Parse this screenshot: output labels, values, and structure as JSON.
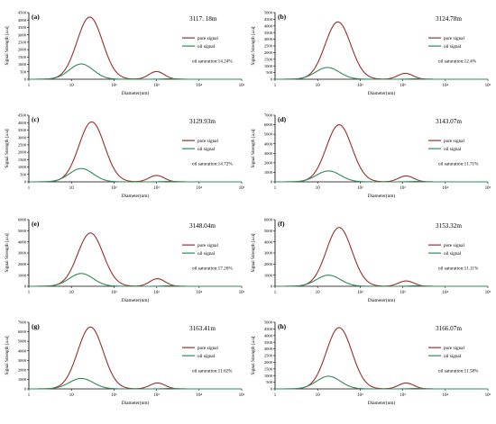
{
  "chart_data": [
    {
      "type": "line",
      "panel_label": "(a)",
      "depth": "3117. 18m",
      "oil_saturation": "oil saturation:14.24%",
      "xlabel": "Diameter(nm)",
      "ylabel": "Signal Strength [a.u]",
      "xscale": "log",
      "xlim": [
        1,
        100000
      ],
      "ylim": [
        0,
        4500
      ],
      "yticks": [
        "0",
        "500",
        "1000",
        "1500",
        "2000",
        "2500",
        "3000",
        "3500",
        "4000",
        "4500"
      ],
      "xtick_labels": [
        "1",
        "10",
        "10²",
        "10³",
        "10⁴",
        "10⁵"
      ],
      "legend": [
        "pore signal",
        "oil signal"
      ],
      "series": [
        {
          "name": "pore signal",
          "color": "#9b2d2d",
          "peaks": [
            {
              "center_nm": 27,
              "height": 4200,
              "width": 0.3
            },
            {
              "center_nm": 1000,
              "height": 520,
              "width": 0.18
            }
          ]
        },
        {
          "name": "oil signal",
          "color": "#2e8b57",
          "peaks": [
            {
              "center_nm": 17,
              "height": 1030,
              "width": 0.28
            },
            {
              "center_nm": 2000,
              "height": 30,
              "width": 0.15
            }
          ]
        }
      ]
    },
    {
      "type": "line",
      "panel_label": "(b)",
      "depth": "3124.78m",
      "oil_saturation": "oil saturation:12.4%",
      "xlabel": "Diameter(nm)",
      "ylabel": "Signal Strength [a.u]",
      "xscale": "log",
      "xlim": [
        1,
        100000
      ],
      "ylim": [
        0,
        5000
      ],
      "yticks": [
        "0",
        "500",
        "1000",
        "1500",
        "2000",
        "2500",
        "3000",
        "3500",
        "4000",
        "4500",
        "5000"
      ],
      "xtick_labels": [
        "1",
        "10",
        "10²",
        "10³",
        "10⁴",
        "10⁵"
      ],
      "legend": [
        "pore signal",
        "oil signal"
      ],
      "series": [
        {
          "name": "pore signal",
          "color": "#9b2d2d",
          "peaks": [
            {
              "center_nm": 30,
              "height": 4300,
              "width": 0.3
            },
            {
              "center_nm": 1150,
              "height": 440,
              "width": 0.18
            }
          ]
        },
        {
          "name": "oil signal",
          "color": "#2e8b57",
          "peaks": [
            {
              "center_nm": 17,
              "height": 880,
              "width": 0.28
            },
            {
              "center_nm": 2000,
              "height": 30,
              "width": 0.15
            }
          ]
        }
      ]
    },
    {
      "type": "line",
      "panel_label": "(c)",
      "depth": "3129.93m",
      "oil_saturation": "oil saturation:14.72%",
      "xlabel": "Diameter(nm)",
      "ylabel": "Signal Strength [a.u]",
      "xscale": "log",
      "xlim": [
        1,
        100000
      ],
      "ylim": [
        0,
        4500
      ],
      "yticks": [
        "0",
        "500",
        "1000",
        "1500",
        "2000",
        "2500",
        "3000",
        "3500",
        "4000",
        "4500"
      ],
      "xtick_labels": [
        "1",
        "10",
        "10²",
        "10³",
        "10⁴",
        "10⁵"
      ],
      "legend": [
        "pore signal",
        "oil signal"
      ],
      "series": [
        {
          "name": "pore signal",
          "color": "#9b2d2d",
          "peaks": [
            {
              "center_nm": 30,
              "height": 4050,
              "width": 0.3
            },
            {
              "center_nm": 1000,
              "height": 430,
              "width": 0.18
            }
          ]
        },
        {
          "name": "oil signal",
          "color": "#2e8b57",
          "peaks": [
            {
              "center_nm": 17,
              "height": 900,
              "width": 0.28
            },
            {
              "center_nm": 2000,
              "height": 30,
              "width": 0.15
            }
          ]
        }
      ]
    },
    {
      "type": "line",
      "panel_label": "(d)",
      "depth": "3143.07m",
      "oil_saturation": "oil saturation:11.71%",
      "xlabel": "Diameter(nm)",
      "ylabel": "Signal Strength [a.u]",
      "xscale": "log",
      "xlim": [
        1,
        100000
      ],
      "ylim": [
        0,
        7000
      ],
      "yticks": [
        "0",
        "1000",
        "2000",
        "3000",
        "4000",
        "5000",
        "6000",
        "7000"
      ],
      "xtick_labels": [
        "1",
        "10",
        "10²",
        "10³",
        "10⁴",
        "10⁵"
      ],
      "legend": [
        "pore signal",
        "oil signal"
      ],
      "series": [
        {
          "name": "pore signal",
          "color": "#9b2d2d",
          "peaks": [
            {
              "center_nm": 32,
              "height": 6000,
              "width": 0.3
            },
            {
              "center_nm": 1200,
              "height": 620,
              "width": 0.18
            }
          ]
        },
        {
          "name": "oil signal",
          "color": "#2e8b57",
          "peaks": [
            {
              "center_nm": 18,
              "height": 1150,
              "width": 0.28
            },
            {
              "center_nm": 2000,
              "height": 40,
              "width": 0.15
            }
          ]
        }
      ]
    },
    {
      "type": "line",
      "panel_label": "(e)",
      "depth": "3148.04m",
      "oil_saturation": "oil saturation:17.26%",
      "xlabel": "Diameter(nm)",
      "ylabel": "Signal Strength [a.u]",
      "xscale": "log",
      "xlim": [
        1,
        100000
      ],
      "ylim": [
        0,
        6000
      ],
      "yticks": [
        "0",
        "1000",
        "2000",
        "3000",
        "4000",
        "5000",
        "6000"
      ],
      "xtick_labels": [
        "1",
        "10",
        "10²",
        "10³",
        "10⁴",
        "10⁵"
      ],
      "legend": [
        "pore signal",
        "oil signal"
      ],
      "series": [
        {
          "name": "pore signal",
          "color": "#9b2d2d",
          "peaks": [
            {
              "center_nm": 28,
              "height": 4800,
              "width": 0.3
            },
            {
              "center_nm": 1050,
              "height": 680,
              "width": 0.18
            }
          ]
        },
        {
          "name": "oil signal",
          "color": "#2e8b57",
          "peaks": [
            {
              "center_nm": 17,
              "height": 1150,
              "width": 0.28
            },
            {
              "center_nm": 2000,
              "height": 40,
              "width": 0.15
            }
          ]
        }
      ]
    },
    {
      "type": "line",
      "panel_label": "(f)",
      "depth": "3153.32m",
      "oil_saturation": "oil saturation:11.11%",
      "xlabel": "Diameter(nm)",
      "ylabel": "Signal Strength [a.u]",
      "xscale": "log",
      "xlim": [
        1,
        100000
      ],
      "ylim": [
        0,
        6000
      ],
      "yticks": [
        "0",
        "1000",
        "2000",
        "3000",
        "4000",
        "5000",
        "6000"
      ],
      "xtick_labels": [
        "1",
        "10",
        "10²",
        "10³",
        "10⁴",
        "10⁵"
      ],
      "legend": [
        "pore signal",
        "oil signal"
      ],
      "series": [
        {
          "name": "pore signal",
          "color": "#9b2d2d",
          "peaks": [
            {
              "center_nm": 32,
              "height": 5300,
              "width": 0.3
            },
            {
              "center_nm": 1200,
              "height": 480,
              "width": 0.18
            }
          ]
        },
        {
          "name": "oil signal",
          "color": "#2e8b57",
          "peaks": [
            {
              "center_nm": 18,
              "height": 1000,
              "width": 0.28
            },
            {
              "center_nm": 2000,
              "height": 40,
              "width": 0.15
            }
          ]
        }
      ]
    },
    {
      "type": "line",
      "panel_label": "(g)",
      "depth": "3163.41m",
      "oil_saturation": "oil saturation:11.62%",
      "xlabel": "Diameter(nm)",
      "ylabel": "Signal Strength [a.u]",
      "xscale": "log",
      "xlim": [
        1,
        100000
      ],
      "ylim": [
        0,
        7000
      ],
      "yticks": [
        "0",
        "1000",
        "2000",
        "3000",
        "4000",
        "5000",
        "6000",
        "7000"
      ],
      "xtick_labels": [
        "1",
        "10",
        "10²",
        "10³",
        "10⁴",
        "10⁵"
      ],
      "legend": [
        "pore signal",
        "oil signal"
      ],
      "series": [
        {
          "name": "pore signal",
          "color": "#9b2d2d",
          "peaks": [
            {
              "center_nm": 28,
              "height": 6500,
              "width": 0.3
            },
            {
              "center_nm": 1050,
              "height": 620,
              "width": 0.18
            }
          ]
        },
        {
          "name": "oil signal",
          "color": "#2e8b57",
          "peaks": [
            {
              "center_nm": 17,
              "height": 1100,
              "width": 0.28
            },
            {
              "center_nm": 2000,
              "height": 40,
              "width": 0.15
            }
          ]
        }
      ]
    },
    {
      "type": "line",
      "panel_label": "(h)",
      "depth": "3166.07m",
      "oil_saturation": "oil saturation:11.58%",
      "xlabel": "Diameter(nm)",
      "ylabel": "Signal Strength [a.u]",
      "xscale": "log",
      "xlim": [
        1,
        100000
      ],
      "ylim": [
        0,
        5000
      ],
      "yticks": [
        "0",
        "500",
        "1000",
        "1500",
        "2000",
        "2500",
        "3000",
        "3500",
        "4000",
        "4500",
        "5000"
      ],
      "xtick_labels": [
        "1",
        "10",
        "10²",
        "10³",
        "10⁴",
        "10⁵"
      ],
      "legend": [
        "pore signal",
        "oil signal"
      ],
      "series": [
        {
          "name": "pore signal",
          "color": "#9b2d2d",
          "peaks": [
            {
              "center_nm": 32,
              "height": 4600,
              "width": 0.3
            },
            {
              "center_nm": 1200,
              "height": 440,
              "width": 0.18
            }
          ]
        },
        {
          "name": "oil signal",
          "color": "#2e8b57",
          "peaks": [
            {
              "center_nm": 18,
              "height": 950,
              "width": 0.28
            },
            {
              "center_nm": 2000,
              "height": 30,
              "width": 0.15
            }
          ]
        }
      ]
    }
  ]
}
